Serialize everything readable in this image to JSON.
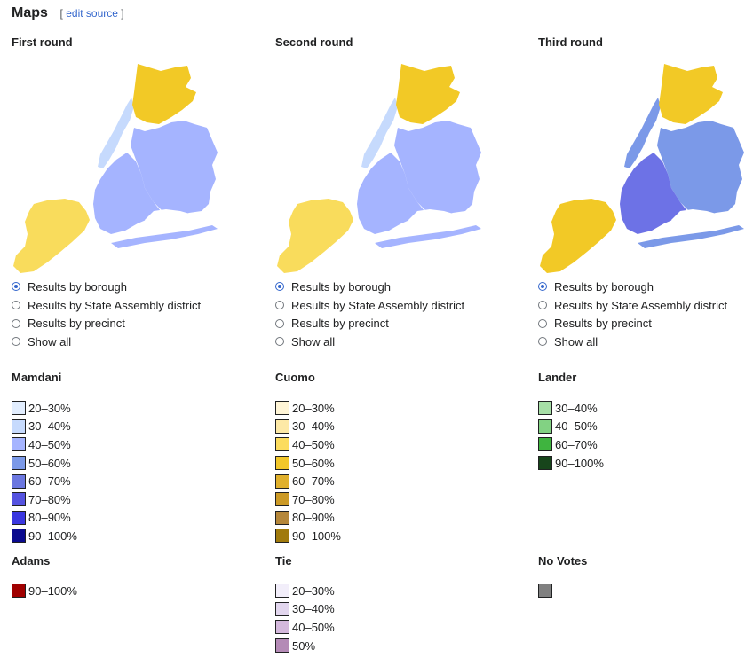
{
  "section": {
    "title": "Maps",
    "edit_open": "[",
    "edit_link": "edit source",
    "edit_close": "]"
  },
  "rounds": [
    {
      "title": "First round",
      "colors": {
        "manhattan": "#c6dafd",
        "bronx": "#f2c926",
        "queens": "#a5b4ff",
        "brooklyn": "#a5b4ff",
        "staten_island": "#f9dc5c"
      },
      "options": [
        {
          "label": "Results by borough",
          "checked": true
        },
        {
          "label": "Results by State Assembly district",
          "checked": false
        },
        {
          "label": "Results by precinct",
          "checked": false
        },
        {
          "label": "Show all",
          "checked": false
        }
      ]
    },
    {
      "title": "Second round",
      "colors": {
        "manhattan": "#c6dafd",
        "bronx": "#f2c926",
        "queens": "#a5b4ff",
        "brooklyn": "#a5b4ff",
        "staten_island": "#f9dc5c"
      },
      "options": [
        {
          "label": "Results by borough",
          "checked": true
        },
        {
          "label": "Results by State Assembly district",
          "checked": false
        },
        {
          "label": "Results by precinct",
          "checked": false
        },
        {
          "label": "Show all",
          "checked": false
        }
      ]
    },
    {
      "title": "Third round",
      "colors": {
        "manhattan": "#7b99e8",
        "bronx": "#f2c926",
        "queens": "#7b99e8",
        "brooklyn": "#6d72e6",
        "staten_island": "#f2c926"
      },
      "options": [
        {
          "label": "Results by borough",
          "checked": true
        },
        {
          "label": "Results by State Assembly district",
          "checked": false
        },
        {
          "label": "Results by precinct",
          "checked": false
        },
        {
          "label": "Show all",
          "checked": false
        }
      ]
    }
  ],
  "legends": [
    {
      "title": "Mamdani",
      "items": [
        {
          "label": "20–30%",
          "color": "#e2eeff"
        },
        {
          "label": "30–40%",
          "color": "#c6dafd"
        },
        {
          "label": "40–50%",
          "color": "#a5b4ff"
        },
        {
          "label": "50–60%",
          "color": "#7b99e8"
        },
        {
          "label": "60–70%",
          "color": "#6b77e0"
        },
        {
          "label": "70–80%",
          "color": "#5553e0"
        },
        {
          "label": "80–90%",
          "color": "#3a37e0"
        },
        {
          "label": "90–100%",
          "color": "#0a0a8e"
        }
      ]
    },
    {
      "title": "Cuomo",
      "items": [
        {
          "label": "20–30%",
          "color": "#fff5d6"
        },
        {
          "label": "30–40%",
          "color": "#fde9a6"
        },
        {
          "label": "40–50%",
          "color": "#fcdc5e"
        },
        {
          "label": "50–60%",
          "color": "#f2c72a"
        },
        {
          "label": "60–70%",
          "color": "#e0b02c"
        },
        {
          "label": "70–80%",
          "color": "#cc9a26"
        },
        {
          "label": "80–90%",
          "color": "#b5873a"
        },
        {
          "label": "90–100%",
          "color": "#a07a0c"
        }
      ]
    },
    {
      "title": "Lander",
      "items": [
        {
          "label": "30–40%",
          "color": "#a6dea6"
        },
        {
          "label": "40–50%",
          "color": "#82d283"
        },
        {
          "label": "60–70%",
          "color": "#3fb43f"
        },
        {
          "label": "90–100%",
          "color": "#17451b"
        }
      ]
    },
    {
      "title": "Adams",
      "items": [
        {
          "label": "90–100%",
          "color": "#a00000"
        }
      ]
    },
    {
      "title": "Tie",
      "items": [
        {
          "label": "20–30%",
          "color": "#f2eefa"
        },
        {
          "label": "30–40%",
          "color": "#e2d6ee"
        },
        {
          "label": "40–50%",
          "color": "#d4b8dc"
        },
        {
          "label": "50%",
          "color": "#b48ab6"
        }
      ]
    },
    {
      "title": "No Votes",
      "items": [
        {
          "label": "",
          "color": "#808080"
        }
      ]
    }
  ]
}
